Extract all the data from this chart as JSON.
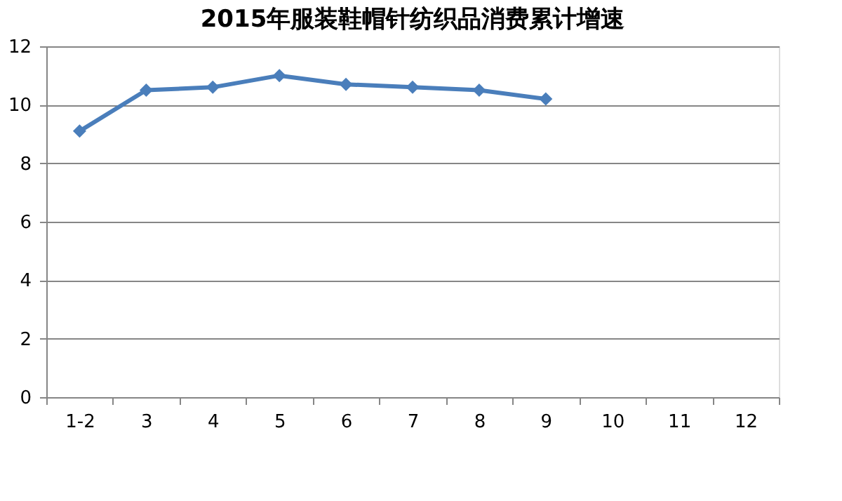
{
  "chart_data": {
    "type": "line",
    "title": "2015年服装鞋帽针纺织品消费累计增速",
    "categories": [
      "1-2",
      "3",
      "4",
      "5",
      "6",
      "7",
      "8",
      "9",
      "10",
      "11",
      "12"
    ],
    "series": [
      {
        "color": "#4a7ebb",
        "values": [
          9.1,
          10.5,
          10.6,
          11.0,
          10.7,
          10.6,
          10.5,
          10.2,
          null,
          null,
          null
        ]
      }
    ],
    "ylim": [
      0,
      12
    ],
    "yticks": [
      0,
      2,
      4,
      6,
      8,
      10,
      12
    ],
    "grid": "y",
    "marker": "diamond",
    "line_style": "solid",
    "legend": false
  }
}
